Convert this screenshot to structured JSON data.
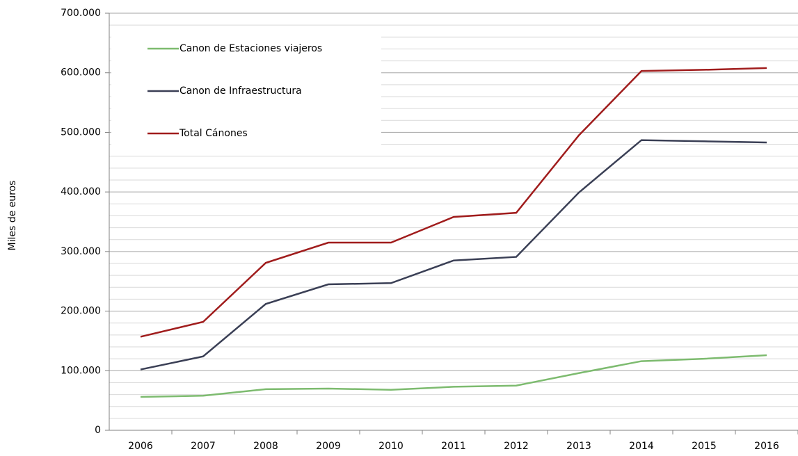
{
  "chart_data": {
    "type": "line",
    "y_axis_label": "Miles de euros",
    "categories": [
      "2006",
      "2007",
      "2008",
      "2009",
      "2010",
      "2011",
      "2012",
      "2013",
      "2014",
      "2015",
      "2016"
    ],
    "series": [
      {
        "name": "Canon de Estaciones viajeros",
        "color": "#7dbb6f",
        "values": [
          56000,
          58000,
          69000,
          70000,
          68000,
          73000,
          75000,
          96000,
          116000,
          120000,
          126000
        ]
      },
      {
        "name": "Canon de Infraestructura",
        "color": "#3a3f55",
        "values": [
          102000,
          124000,
          212000,
          245000,
          247000,
          285000,
          291000,
          399000,
          487000,
          485000,
          483000
        ]
      },
      {
        "name": "Total Cánones",
        "color": "#a01c1c",
        "values": [
          157000,
          182000,
          281000,
          315000,
          315000,
          358000,
          365000,
          495000,
          603000,
          605000,
          608000
        ]
      }
    ],
    "ylim": [
      0,
      700000
    ],
    "yticks": [
      0,
      {
        "value": 100000,
        "label": "100.000"
      },
      {
        "value": 200000,
        "label": "200.000"
      },
      {
        "value": 300000,
        "label": "300.000"
      },
      {
        "value": 400000,
        "label": "400.000"
      },
      {
        "value": 500000,
        "label": "500.000"
      },
      {
        "value": 600000,
        "label": "600.000"
      },
      {
        "value": 700000,
        "label": "700.000"
      }
    ],
    "minor_yticks": [
      20000,
      40000,
      60000,
      80000,
      120000,
      140000,
      160000,
      180000,
      220000,
      240000,
      260000,
      280000,
      320000,
      340000,
      360000,
      380000,
      420000,
      440000,
      460000,
      480000,
      520000,
      540000,
      560000,
      580000,
      620000,
      640000,
      660000,
      680000
    ],
    "grid": true,
    "legend": "upper left"
  }
}
